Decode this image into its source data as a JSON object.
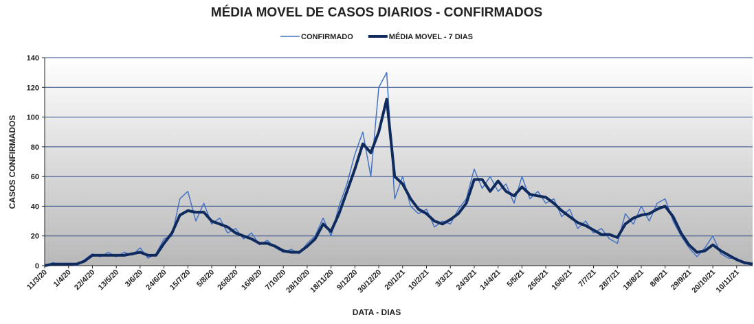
{
  "chart_data": {
    "type": "line",
    "title": "MÉDIA MOVEL DE CASOS DIARIOS - CONFIRMADOS",
    "x_label": "DATA - DIAS",
    "y_label": "CASOS CONFIRMADOS",
    "categories": [
      "11/3/20",
      null,
      null,
      "1/4/20",
      null,
      null,
      "22/4/20",
      null,
      null,
      "13/5/20",
      null,
      null,
      "3/6/20",
      null,
      null,
      "24/6/20",
      null,
      null,
      "15/7/20",
      null,
      null,
      "5/8/20",
      null,
      null,
      "26/8/20",
      null,
      null,
      "16/9/20",
      null,
      null,
      "7/10/20",
      null,
      null,
      "28/10/20",
      null,
      null,
      "18/11/20",
      null,
      null,
      "9/12/20",
      null,
      null,
      "30/12/20",
      null,
      null,
      "20/1/21",
      null,
      null,
      "10/2/21",
      null,
      null,
      "3/3/21",
      null,
      null,
      "24/3/21",
      null,
      null,
      "14/4/21",
      null,
      null,
      "5/5/21",
      null,
      null,
      "26/5/21",
      null,
      null,
      "16/6/21",
      null,
      null,
      "7/7/21",
      null,
      null,
      "28/7/21",
      null,
      null,
      "18/8/21",
      null,
      null,
      "8/9/21",
      null,
      null,
      "29/9/21",
      null,
      null,
      "20/10/21",
      null,
      null,
      "10/11/21",
      null,
      null
    ],
    "series": [
      {
        "name": "CONFIRMADO",
        "color": "#4472c4",
        "width": 1.5,
        "values": [
          0,
          2,
          1,
          1,
          0,
          4,
          8,
          6,
          9,
          6,
          9,
          7,
          12,
          5,
          8,
          18,
          20,
          45,
          50,
          30,
          42,
          28,
          32,
          22,
          25,
          18,
          22,
          14,
          17,
          12,
          9,
          11,
          8,
          15,
          20,
          32,
          20,
          40,
          55,
          75,
          90,
          60,
          120,
          130,
          45,
          60,
          40,
          35,
          38,
          26,
          30,
          28,
          38,
          45,
          65,
          52,
          60,
          50,
          55,
          42,
          60,
          45,
          50,
          42,
          45,
          33,
          38,
          25,
          30,
          22,
          25,
          18,
          15,
          35,
          28,
          40,
          30,
          42,
          45,
          30,
          20,
          12,
          6,
          12,
          20,
          8,
          5,
          5,
          1,
          2
        ]
      },
      {
        "name": "MÉDIA MOVEL - 7 DIAS",
        "color": "#0f2a5c",
        "width": 4,
        "values": [
          0,
          1,
          1,
          1,
          1,
          3,
          7,
          7,
          7,
          7,
          7,
          8,
          9,
          7,
          7,
          15,
          22,
          34,
          37,
          36,
          36,
          30,
          28,
          26,
          22,
          20,
          18,
          15,
          15,
          13,
          10,
          9,
          9,
          13,
          18,
          28,
          23,
          35,
          50,
          65,
          82,
          76,
          90,
          112,
          60,
          55,
          45,
          38,
          35,
          30,
          28,
          31,
          35,
          42,
          58,
          58,
          50,
          57,
          50,
          47,
          53,
          48,
          47,
          46,
          42,
          37,
          33,
          29,
          27,
          24,
          21,
          21,
          19,
          28,
          32,
          34,
          35,
          38,
          40,
          33,
          22,
          14,
          9,
          10,
          14,
          10,
          7,
          4,
          2,
          1
        ]
      }
    ],
    "ylim": [
      0,
      140
    ],
    "yticks": [
      0,
      20,
      40,
      60,
      80,
      100,
      120,
      140
    ],
    "grid": true
  }
}
